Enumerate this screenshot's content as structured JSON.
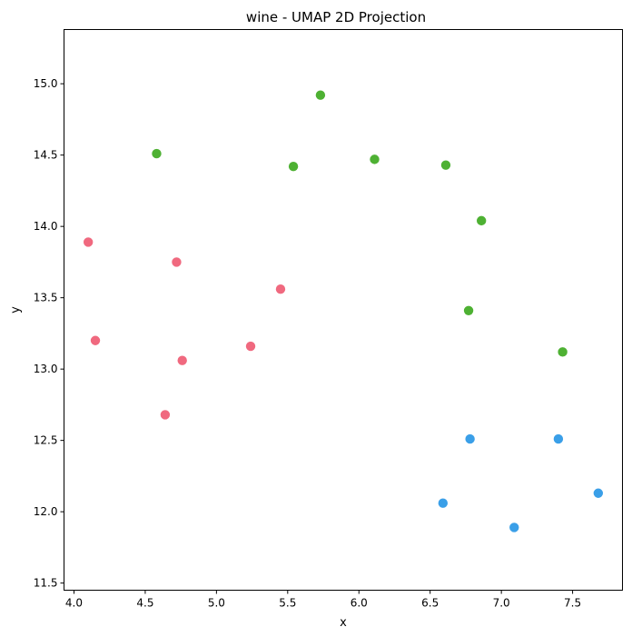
{
  "chart_data": {
    "type": "scatter",
    "title": "wine - UMAP 2D Projection",
    "xlabel": "x",
    "ylabel": "y",
    "xlim": [
      3.93,
      7.85
    ],
    "ylim": [
      11.45,
      15.38
    ],
    "xticks": [
      4.0,
      4.5,
      5.0,
      5.5,
      6.0,
      6.5,
      7.0,
      7.5
    ],
    "xtick_labels": [
      "4.0",
      "4.5",
      "5.0",
      "5.5",
      "6.0",
      "6.5",
      "7.0",
      "7.5"
    ],
    "yticks": [
      11.5,
      12.0,
      12.5,
      13.0,
      13.5,
      14.0,
      14.5,
      15.0
    ],
    "ytick_labels": [
      "11.5",
      "12.0",
      "12.5",
      "13.0",
      "13.5",
      "14.0",
      "14.5",
      "15.0"
    ],
    "grid": false,
    "series": [
      {
        "color": "#f0697f",
        "points": [
          {
            "x": 4.1,
            "y": 13.89
          },
          {
            "x": 4.15,
            "y": 13.2
          },
          {
            "x": 4.72,
            "y": 13.75
          },
          {
            "x": 4.76,
            "y": 13.06
          },
          {
            "x": 4.64,
            "y": 12.68
          },
          {
            "x": 5.24,
            "y": 13.16
          },
          {
            "x": 5.45,
            "y": 13.56
          }
        ]
      },
      {
        "color": "#4eb133",
        "points": [
          {
            "x": 4.58,
            "y": 14.51
          },
          {
            "x": 5.73,
            "y": 14.92
          },
          {
            "x": 5.54,
            "y": 14.42
          },
          {
            "x": 6.11,
            "y": 14.47
          },
          {
            "x": 6.61,
            "y": 14.43
          },
          {
            "x": 6.86,
            "y": 14.04
          },
          {
            "x": 6.77,
            "y": 13.41
          },
          {
            "x": 7.43,
            "y": 13.12
          }
        ]
      },
      {
        "color": "#3a9fe8",
        "points": [
          {
            "x": 6.78,
            "y": 12.51
          },
          {
            "x": 7.4,
            "y": 12.51
          },
          {
            "x": 6.59,
            "y": 12.06
          },
          {
            "x": 7.09,
            "y": 11.89
          },
          {
            "x": 7.68,
            "y": 12.13
          }
        ]
      }
    ]
  }
}
